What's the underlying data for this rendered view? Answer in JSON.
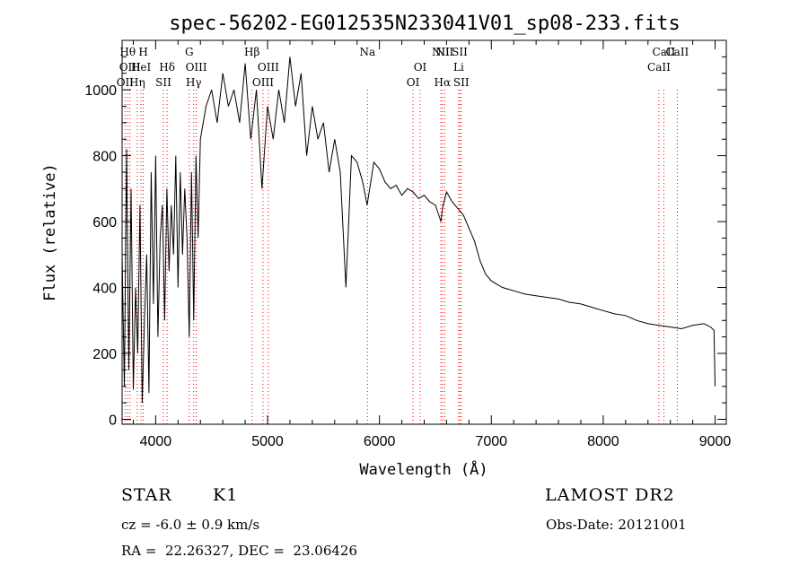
{
  "chart_data": {
    "type": "line",
    "title": "spec-56202-EG012535N233041V01_sp08-233.fits",
    "xlabel": "Wavelength (Å)",
    "ylabel": "Flux (relative)",
    "xlim": [
      3700,
      9100
    ],
    "ylim": [
      -15,
      1150
    ],
    "xticks": [
      4000,
      5000,
      6000,
      7000,
      8000,
      9000
    ],
    "yticks": [
      0,
      200,
      400,
      600,
      800,
      1000
    ],
    "grid": false,
    "line_color": "#000000",
    "marker_color": "#ff0000",
    "series": [
      {
        "x": [
          3700,
          3720,
          3740,
          3760,
          3780,
          3800,
          3820,
          3840,
          3860,
          3880,
          3900,
          3920,
          3940,
          3960,
          3980,
          4000,
          4020,
          4040,
          4060,
          4080,
          4100,
          4120,
          4140,
          4160,
          4180,
          4200,
          4220,
          4240,
          4260,
          4280,
          4300,
          4320,
          4340,
          4360,
          4380,
          4400,
          4450,
          4500,
          4550,
          4600,
          4650,
          4700,
          4750,
          4800,
          4850,
          4900,
          4950,
          5000,
          5050,
          5100,
          5150,
          5200,
          5250,
          5300,
          5350,
          5400,
          5450,
          5500,
          5550,
          5600,
          5650,
          5700,
          5750,
          5800,
          5850,
          5890,
          5950,
          6000,
          6050,
          6100,
          6150,
          6200,
          6250,
          6300,
          6350,
          6400,
          6450,
          6500,
          6550,
          6563,
          6600,
          6650,
          6700,
          6750,
          6800,
          6850,
          6900,
          6950,
          7000,
          7050,
          7100,
          7150,
          7200,
          7300,
          7400,
          7500,
          7600,
          7700,
          7800,
          7900,
          8000,
          8100,
          8200,
          8300,
          8400,
          8500,
          8600,
          8700,
          8800,
          8900,
          8960,
          8990,
          9000
        ],
        "values": [
          500,
          100,
          820,
          150,
          700,
          90,
          400,
          200,
          650,
          50,
          300,
          500,
          80,
          750,
          350,
          800,
          250,
          550,
          650,
          300,
          700,
          450,
          650,
          500,
          800,
          400,
          750,
          500,
          700,
          550,
          250,
          750,
          300,
          800,
          550,
          850,
          950,
          1000,
          900,
          1050,
          950,
          1000,
          900,
          1080,
          850,
          1000,
          700,
          950,
          850,
          1000,
          900,
          1100,
          950,
          1050,
          800,
          950,
          850,
          900,
          750,
          850,
          750,
          400,
          800,
          780,
          720,
          650,
          780,
          760,
          720,
          700,
          710,
          680,
          700,
          690,
          670,
          680,
          660,
          650,
          600,
          640,
          690,
          660,
          640,
          620,
          580,
          540,
          480,
          440,
          420,
          410,
          400,
          395,
          390,
          380,
          375,
          370,
          365,
          355,
          350,
          340,
          330,
          320,
          315,
          300,
          290,
          285,
          280,
          275,
          285,
          290,
          280,
          270,
          100
        ]
      }
    ],
    "line_markers": [
      {
        "x": 3727,
        "labels": [
          "OII"
        ],
        "tier": 2
      },
      {
        "x": 3750,
        "labels": [
          "Hθ"
        ],
        "tier": 0
      },
      {
        "x": 3770,
        "labels": [
          "OIII"
        ],
        "tier": 1
      },
      {
        "x": 3835,
        "labels": [
          "Hη"
        ],
        "tier": 2
      },
      {
        "x": 3869,
        "labels": [
          "HeI"
        ],
        "tier": 1
      },
      {
        "x": 3889,
        "labels": [
          "H"
        ],
        "tier": 0
      },
      {
        "x": 4069,
        "labels": [
          "SII"
        ],
        "tier": 2
      },
      {
        "x": 4102,
        "labels": [
          "Hδ"
        ],
        "tier": 1
      },
      {
        "x": 4300,
        "labels": [
          "G"
        ],
        "tier": 0
      },
      {
        "x": 4340,
        "labels": [
          "Hγ"
        ],
        "tier": 2
      },
      {
        "x": 4363,
        "labels": [
          "OIII"
        ],
        "tier": 1
      },
      {
        "x": 4861,
        "labels": [
          "Hβ"
        ],
        "tier": 0
      },
      {
        "x": 4959,
        "labels": [
          "OIII"
        ],
        "tier": 2
      },
      {
        "x": 5007,
        "labels": [
          "OIII"
        ],
        "tier": 1
      },
      {
        "x": 5893,
        "labels": [
          "Na"
        ],
        "tier": 0
      },
      {
        "x": 6300,
        "labels": [
          "OI"
        ],
        "tier": 2
      },
      {
        "x": 6364,
        "labels": [
          "OI"
        ],
        "tier": 1
      },
      {
        "x": 6548,
        "labels": [
          "NII"
        ],
        "tier": 0
      },
      {
        "x": 6563,
        "labels": [
          "Hα"
        ],
        "tier": 2
      },
      {
        "x": 6583,
        "labels": [
          "NII"
        ],
        "tier": 0
      },
      {
        "x": 6708,
        "labels": [
          "Li"
        ],
        "tier": 1
      },
      {
        "x": 6717,
        "labels": [
          "SII"
        ],
        "tier": 0
      },
      {
        "x": 6731,
        "labels": [
          "SII"
        ],
        "tier": 2
      },
      {
        "x": 8498,
        "labels": [
          "CaII"
        ],
        "tier": 1
      },
      {
        "x": 8542,
        "labels": [
          "CaII"
        ],
        "tier": 0
      },
      {
        "x": 8662,
        "labels": [
          "CaII"
        ],
        "tier": 0
      }
    ]
  },
  "info": {
    "object_class": "STAR",
    "subclass": "K1",
    "release": "LAMOST DR2",
    "redshift": "cz = -6.0 ± 0.9 km/s",
    "obs_date": "Obs-Date: 20121001",
    "coords": "RA =  22.26327, DEC =  23.06426"
  }
}
